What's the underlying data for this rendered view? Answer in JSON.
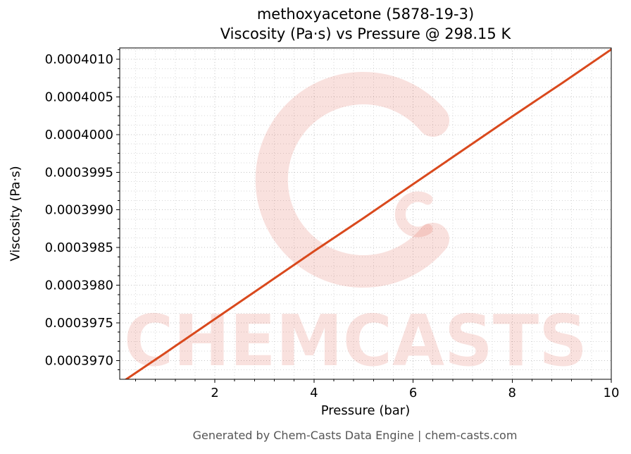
{
  "title": {
    "lines": [
      "methoxyacetone (5878-19-3)",
      "Viscosity (Pa·s) vs Pressure @ 298.15 K"
    ]
  },
  "footer": {
    "text": "Generated by Chem-Casts Data Engine | chem-casts.com"
  },
  "watermark": {
    "text": "CHEMCASTS",
    "color": "rgba(217,80,60,0.17)"
  },
  "chart_data": {
    "type": "line",
    "title": "methoxyacetone (5878-19-3) — Viscosity (Pa·s) vs Pressure @ 298.15 K",
    "xlabel": "Pressure (bar)",
    "ylabel": "Viscosity (Pa·s)",
    "xlim": [
      0.08,
      10.0
    ],
    "ylim": [
      0.00039675,
      0.00040115
    ],
    "xticks": [
      2,
      4,
      6,
      8,
      10
    ],
    "xtick_labels": [
      "2",
      "4",
      "6",
      "8",
      "10"
    ],
    "yticks": [
      0.000397,
      0.0003975,
      0.000398,
      0.0003985,
      0.000399,
      0.0003995,
      0.0004,
      0.0004005,
      0.000401
    ],
    "ytick_labels": [
      "0.0003970",
      "0.0003975",
      "0.0003980",
      "0.0003985",
      "0.0003990",
      "0.0003995",
      "0.0004000",
      "0.0004005",
      "0.0004010"
    ],
    "x_minor_step": 0.4,
    "y_minor_step": 1.25e-07,
    "grid": true,
    "grid_style": "dotted",
    "legend": "none",
    "line_color": "#d9491d",
    "line_width": 3,
    "series": [
      {
        "name": "Viscosity vs Pressure",
        "x": [
          0.1,
          1,
          2,
          3,
          4,
          5,
          6,
          7,
          8,
          9,
          10
        ],
        "y": [
          0.0003967,
          0.0003971,
          0.00039755,
          0.000398,
          0.00039845,
          0.00039889,
          0.00039934,
          0.00039979,
          0.00040024,
          0.00040068,
          0.00040113
        ]
      }
    ]
  }
}
